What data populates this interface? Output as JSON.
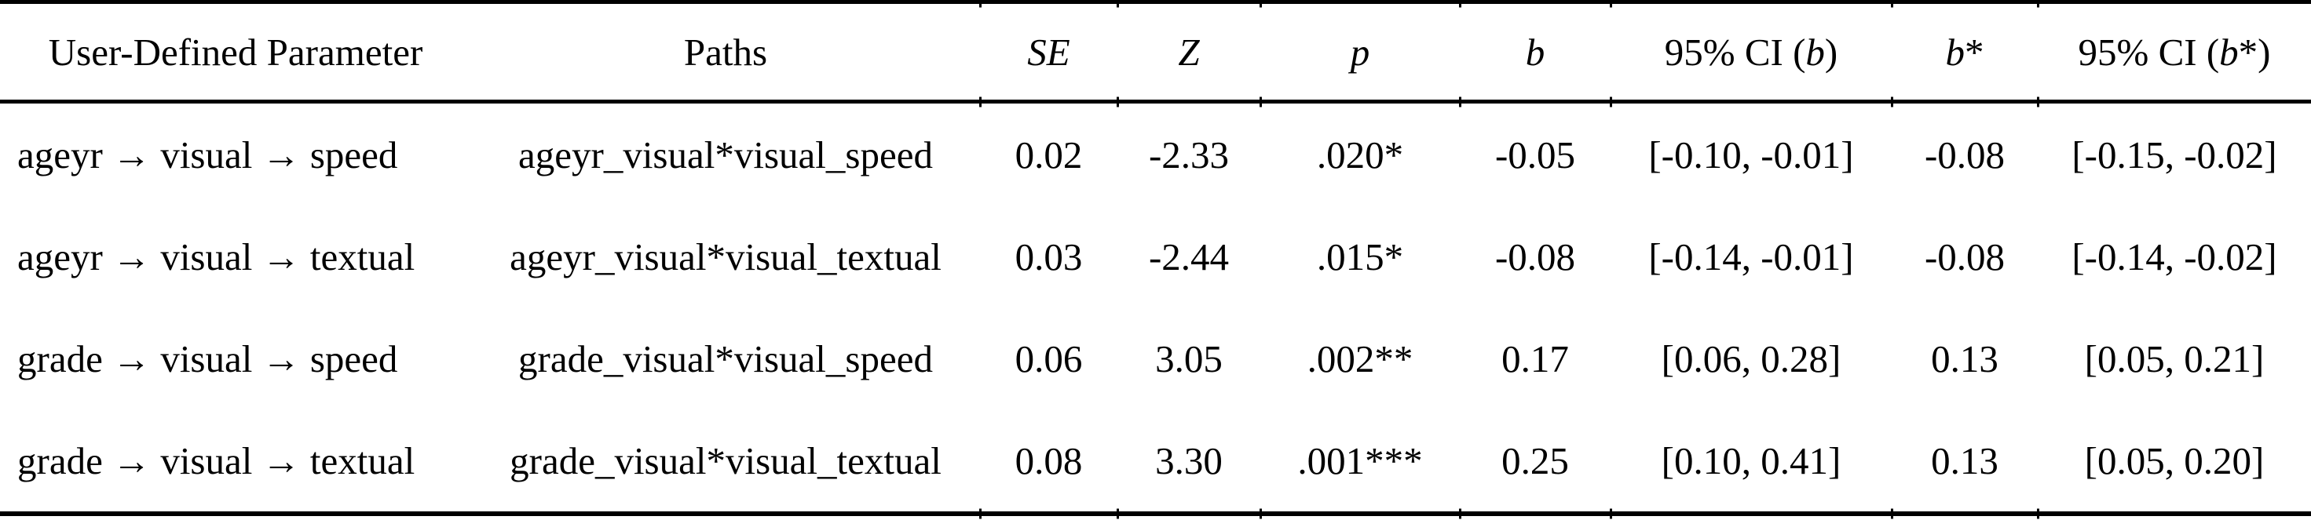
{
  "colors": {
    "text": "#000000",
    "background": "#ffffff",
    "rule": "#000000"
  },
  "table": {
    "columns": [
      {
        "field": "param",
        "parts": [
          {
            "text": "User-Defined Parameter",
            "italic": false
          }
        ]
      },
      {
        "field": "paths",
        "parts": [
          {
            "text": "Paths",
            "italic": false
          }
        ]
      },
      {
        "field": "se",
        "parts": [
          {
            "text": "SE",
            "italic": true
          }
        ]
      },
      {
        "field": "z",
        "parts": [
          {
            "text": "Z",
            "italic": true
          }
        ]
      },
      {
        "field": "p",
        "parts": [
          {
            "text": "p",
            "italic": true
          }
        ]
      },
      {
        "field": "b",
        "parts": [
          {
            "text": "b",
            "italic": true
          }
        ]
      },
      {
        "field": "ci_b",
        "parts": [
          {
            "text": "95% CI (",
            "italic": false
          },
          {
            "text": "b",
            "italic": true
          },
          {
            "text": ")",
            "italic": false
          }
        ]
      },
      {
        "field": "b_star",
        "parts": [
          {
            "text": "b",
            "italic": true
          },
          {
            "text": "*",
            "italic": false
          }
        ]
      },
      {
        "field": "ci_b_star",
        "parts": [
          {
            "text": "95% CI (",
            "italic": false
          },
          {
            "text": "b",
            "italic": true
          },
          {
            "text": "*)",
            "italic": false
          }
        ]
      }
    ],
    "rows": [
      {
        "param": "ageyr → visual → speed",
        "paths": "ageyr_visual*visual_speed",
        "se": "0.02",
        "z": "-2.33",
        "p": ".020*",
        "b": "-0.05",
        "ci_b": "[-0.10, -0.01]",
        "b_star": "-0.08",
        "ci_b_star": "[-0.15, -0.02]"
      },
      {
        "param": "ageyr → visual → textual",
        "paths": "ageyr_visual*visual_textual",
        "se": "0.03",
        "z": "-2.44",
        "p": ".015*",
        "b": "-0.08",
        "ci_b": "[-0.14, -0.01]",
        "b_star": "-0.08",
        "ci_b_star": "[-0.14, -0.02]"
      },
      {
        "param": "grade → visual → speed",
        "paths": "grade_visual*visual_speed",
        "se": "0.06",
        "z": "3.05",
        "p": ".002**",
        "b": "0.17",
        "ci_b": "[0.06, 0.28]",
        "b_star": "0.13",
        "ci_b_star": "[0.05, 0.21]"
      },
      {
        "param": "grade → visual → textual",
        "paths": "grade_visual*visual_textual",
        "se": "0.08",
        "z": "3.30",
        "p": ".001***",
        "b": "0.25",
        "ci_b": "[0.10, 0.41]",
        "b_star": "0.13",
        "ci_b_star": "[0.05, 0.20]"
      }
    ]
  }
}
